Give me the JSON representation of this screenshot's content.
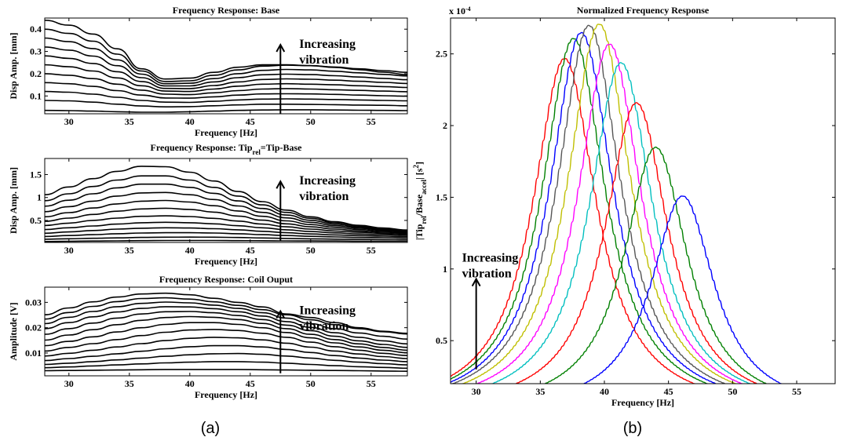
{
  "captions": {
    "a": "(a)",
    "b": "(b)"
  },
  "chart_data": [
    {
      "type": "line",
      "title": "Frequency Response: Base",
      "xlabel": "Frequency [Hz]",
      "ylabel": "Disp Amp. [mm]",
      "xlim": [
        28,
        58
      ],
      "ylim": [
        0.02,
        0.45
      ],
      "xticks": [
        30,
        35,
        40,
        45,
        50,
        55
      ],
      "yticks": [
        0.1,
        0.2,
        0.3,
        0.4
      ],
      "xticklabels": [
        "30",
        "35",
        "40",
        "45",
        "50",
        "55"
      ],
      "yticklabels": [
        "0.1",
        "0.2",
        "0.3",
        "0.4"
      ],
      "annotation": {
        "line1": "Increasing",
        "line2": "vibration",
        "x": 47.5,
        "y_from": 0.02,
        "y_to": 0.33
      },
      "x": [
        28,
        30,
        32,
        34,
        36,
        38,
        40,
        42,
        44,
        46,
        48,
        50,
        52,
        54,
        56,
        58
      ],
      "series": [
        {
          "color": "#000000",
          "values": [
            0.035,
            0.034,
            0.032,
            0.029,
            0.027,
            0.027,
            0.029,
            0.032,
            0.035,
            0.037,
            0.038,
            0.038,
            0.037,
            0.036,
            0.035,
            0.034
          ]
        },
        {
          "color": "#000000",
          "values": [
            0.08,
            0.078,
            0.072,
            0.063,
            0.055,
            0.051,
            0.052,
            0.056,
            0.06,
            0.063,
            0.063,
            0.062,
            0.061,
            0.059,
            0.058,
            0.056
          ]
        },
        {
          "color": "#000000",
          "values": [
            0.12,
            0.117,
            0.108,
            0.094,
            0.08,
            0.072,
            0.071,
            0.076,
            0.082,
            0.086,
            0.087,
            0.086,
            0.084,
            0.082,
            0.08,
            0.078
          ]
        },
        {
          "color": "#000000",
          "values": [
            0.16,
            0.155,
            0.143,
            0.124,
            0.104,
            0.091,
            0.09,
            0.096,
            0.104,
            0.109,
            0.11,
            0.109,
            0.107,
            0.104,
            0.101,
            0.099
          ]
        },
        {
          "color": "#000000",
          "values": [
            0.2,
            0.193,
            0.178,
            0.153,
            0.126,
            0.108,
            0.106,
            0.114,
            0.124,
            0.131,
            0.133,
            0.131,
            0.128,
            0.125,
            0.122,
            0.119
          ]
        },
        {
          "color": "#000000",
          "values": [
            0.24,
            0.231,
            0.212,
            0.181,
            0.146,
            0.122,
            0.12,
            0.131,
            0.144,
            0.153,
            0.155,
            0.153,
            0.15,
            0.146,
            0.142,
            0.138
          ]
        },
        {
          "color": "#000000",
          "values": [
            0.28,
            0.269,
            0.246,
            0.209,
            0.165,
            0.134,
            0.133,
            0.147,
            0.163,
            0.174,
            0.177,
            0.175,
            0.171,
            0.166,
            0.161,
            0.156
          ]
        },
        {
          "color": "#000000",
          "values": [
            0.32,
            0.306,
            0.279,
            0.236,
            0.182,
            0.145,
            0.145,
            0.163,
            0.182,
            0.195,
            0.198,
            0.196,
            0.191,
            0.185,
            0.179,
            0.173
          ]
        },
        {
          "color": "#000000",
          "values": [
            0.36,
            0.344,
            0.313,
            0.262,
            0.198,
            0.155,
            0.157,
            0.178,
            0.2,
            0.215,
            0.219,
            0.217,
            0.211,
            0.204,
            0.197,
            0.19
          ]
        },
        {
          "color": "#000000",
          "values": [
            0.4,
            0.381,
            0.346,
            0.288,
            0.212,
            0.165,
            0.168,
            0.193,
            0.217,
            0.234,
            0.238,
            0.236,
            0.23,
            0.222,
            0.214,
            0.206
          ]
        },
        {
          "color": "#000000",
          "values": [
            0.44,
            0.418,
            0.378,
            0.312,
            0.222,
            0.176,
            0.18,
            0.206,
            0.229,
            0.24,
            0.24,
            0.236,
            0.228,
            0.218,
            0.207,
            0.196
          ]
        }
      ]
    },
    {
      "type": "line",
      "title_main": "Frequency Response: Tip",
      "title_sub": "rel",
      "title_end": "=Tip-Base",
      "xlabel": "Frequency [Hz]",
      "ylabel": "Disp Amp. [mm]",
      "xlim": [
        28,
        58
      ],
      "ylim": [
        0.02,
        1.85
      ],
      "xticks": [
        30,
        35,
        40,
        45,
        50,
        55
      ],
      "yticks": [
        0.5,
        1,
        1.5
      ],
      "xticklabels": [
        "30",
        "35",
        "40",
        "45",
        "50",
        "55"
      ],
      "yticklabels": [
        "0.5",
        "1",
        "1.5"
      ],
      "annotation": {
        "line1": "Increasing",
        "line2": "vibration",
        "x": 47.5,
        "y_from": 0.05,
        "y_to": 1.35
      },
      "x": [
        28,
        30,
        32,
        34,
        36,
        38,
        40,
        42,
        44,
        46,
        48,
        50,
        52,
        54,
        56,
        58
      ],
      "series": [
        {
          "color": "#000000",
          "values": [
            0.04,
            0.045,
            0.05,
            0.055,
            0.06,
            0.062,
            0.063,
            0.062,
            0.06,
            0.058,
            0.055,
            0.052,
            0.05,
            0.048,
            0.046,
            0.045
          ]
        },
        {
          "color": "#000000",
          "values": [
            0.09,
            0.1,
            0.11,
            0.12,
            0.13,
            0.135,
            0.137,
            0.135,
            0.128,
            0.118,
            0.107,
            0.098,
            0.091,
            0.086,
            0.082,
            0.079
          ]
        },
        {
          "color": "#000000",
          "values": [
            0.15,
            0.17,
            0.19,
            0.21,
            0.225,
            0.232,
            0.232,
            0.225,
            0.21,
            0.19,
            0.17,
            0.153,
            0.14,
            0.13,
            0.122,
            0.116
          ]
        },
        {
          "color": "#000000",
          "values": [
            0.22,
            0.25,
            0.28,
            0.31,
            0.33,
            0.34,
            0.335,
            0.32,
            0.295,
            0.263,
            0.232,
            0.205,
            0.184,
            0.168,
            0.156,
            0.147
          ]
        },
        {
          "color": "#000000",
          "values": [
            0.3,
            0.34,
            0.38,
            0.42,
            0.45,
            0.46,
            0.45,
            0.425,
            0.385,
            0.34,
            0.295,
            0.258,
            0.228,
            0.205,
            0.189,
            0.176
          ]
        },
        {
          "color": "#000000",
          "values": [
            0.39,
            0.44,
            0.5,
            0.55,
            0.59,
            0.6,
            0.585,
            0.545,
            0.485,
            0.42,
            0.36,
            0.31,
            0.27,
            0.24,
            0.218,
            0.201
          ]
        },
        {
          "color": "#000000",
          "values": [
            0.48,
            0.55,
            0.63,
            0.7,
            0.75,
            0.765,
            0.74,
            0.68,
            0.595,
            0.505,
            0.425,
            0.36,
            0.31,
            0.272,
            0.243,
            0.221
          ]
        },
        {
          "color": "#000000",
          "values": [
            0.58,
            0.67,
            0.77,
            0.86,
            0.92,
            0.935,
            0.9,
            0.82,
            0.705,
            0.59,
            0.49,
            0.41,
            0.35,
            0.303,
            0.267,
            0.24
          ]
        },
        {
          "color": "#000000",
          "values": [
            0.69,
            0.8,
            0.92,
            1.03,
            1.1,
            1.11,
            1.06,
            0.955,
            0.815,
            0.675,
            0.555,
            0.458,
            0.386,
            0.33,
            0.288,
            0.256
          ]
        },
        {
          "color": "#000000",
          "values": [
            0.81,
            0.94,
            1.08,
            1.21,
            1.29,
            1.29,
            1.22,
            1.09,
            0.925,
            0.76,
            0.617,
            0.503,
            0.418,
            0.354,
            0.306,
            0.27
          ]
        },
        {
          "color": "#000000",
          "values": [
            0.93,
            1.08,
            1.24,
            1.38,
            1.47,
            1.47,
            1.38,
            1.22,
            1.03,
            0.84,
            0.675,
            0.545,
            0.448,
            0.376,
            0.322,
            0.282
          ]
        },
        {
          "color": "#000000",
          "values": [
            1.06,
            1.23,
            1.41,
            1.57,
            1.68,
            1.67,
            1.55,
            1.36,
            1.13,
            0.91,
            0.725,
            0.58,
            0.472,
            0.392,
            0.334,
            0.29
          ]
        }
      ]
    },
    {
      "type": "line",
      "title": "Frequency Response: Coil Ouput",
      "xlabel": "Frequency [Hz]",
      "ylabel": "Amplitude [V]",
      "xlim": [
        28,
        58
      ],
      "ylim": [
        0.001,
        0.036
      ],
      "xticks": [
        30,
        35,
        40,
        45,
        50,
        55
      ],
      "yticks": [
        0.01,
        0.02,
        0.03
      ],
      "xticklabels": [
        "30",
        "35",
        "40",
        "45",
        "50",
        "55"
      ],
      "yticklabels": [
        "0.01",
        "0.02",
        "0.03"
      ],
      "annotation": {
        "line1": "Increasing",
        "line2": "vibration",
        "x": 47.5,
        "y_from": 0.002,
        "y_to": 0.0265
      },
      "x": [
        28,
        30,
        32,
        34,
        36,
        38,
        40,
        42,
        44,
        46,
        48,
        50,
        52,
        54,
        56,
        58
      ],
      "series": [
        {
          "color": "#000000",
          "values": [
            0.003,
            0.0031,
            0.0032,
            0.0033,
            0.0034,
            0.0035,
            0.0035,
            0.0035,
            0.0035,
            0.0034,
            0.0033,
            0.0032,
            0.0031,
            0.003,
            0.0029,
            0.0028
          ]
        },
        {
          "color": "#000000",
          "values": [
            0.0042,
            0.0045,
            0.0049,
            0.0053,
            0.0057,
            0.0061,
            0.0064,
            0.0066,
            0.0066,
            0.0064,
            0.006,
            0.0055,
            0.005,
            0.0046,
            0.0043,
            0.004
          ]
        },
        {
          "color": "#000000",
          "values": [
            0.0055,
            0.006,
            0.0066,
            0.0073,
            0.008,
            0.0087,
            0.0093,
            0.0097,
            0.0098,
            0.0095,
            0.0088,
            0.008,
            0.0071,
            0.0064,
            0.0058,
            0.0053
          ]
        },
        {
          "color": "#000000",
          "values": [
            0.007,
            0.0078,
            0.0087,
            0.0097,
            0.0107,
            0.0117,
            0.0125,
            0.0129,
            0.0129,
            0.0124,
            0.0114,
            0.0102,
            0.009,
            0.008,
            0.0072,
            0.0066
          ]
        },
        {
          "color": "#000000",
          "values": [
            0.0088,
            0.0099,
            0.0111,
            0.0124,
            0.0137,
            0.0149,
            0.0158,
            0.0162,
            0.016,
            0.0152,
            0.0139,
            0.0123,
            0.0108,
            0.0096,
            0.0086,
            0.0078
          ]
        },
        {
          "color": "#000000",
          "values": [
            0.0108,
            0.0122,
            0.0137,
            0.0153,
            0.0169,
            0.0182,
            0.0191,
            0.0193,
            0.0189,
            0.0178,
            0.0162,
            0.0143,
            0.0125,
            0.0111,
            0.0099,
            0.009
          ]
        },
        {
          "color": "#000000",
          "values": [
            0.0129,
            0.0146,
            0.0164,
            0.0183,
            0.02,
            0.0213,
            0.022,
            0.022,
            0.0213,
            0.02,
            0.0181,
            0.016,
            0.014,
            0.0124,
            0.0111,
            0.0101
          ]
        },
        {
          "color": "#000000",
          "values": [
            0.0151,
            0.0171,
            0.0192,
            0.0212,
            0.0229,
            0.024,
            0.0244,
            0.0241,
            0.0232,
            0.0217,
            0.0196,
            0.0174,
            0.0153,
            0.0136,
            0.0122,
            0.0111
          ]
        },
        {
          "color": "#000000",
          "values": [
            0.0174,
            0.0196,
            0.0218,
            0.0238,
            0.0254,
            0.0263,
            0.0264,
            0.0259,
            0.0248,
            0.0232,
            0.021,
            0.0188,
            0.0166,
            0.0148,
            0.0134,
            0.0122
          ]
        },
        {
          "color": "#000000",
          "values": [
            0.0196,
            0.022,
            0.0243,
            0.0262,
            0.0276,
            0.0283,
            0.0282,
            0.0275,
            0.0263,
            0.0246,
            0.0224,
            0.0201,
            0.018,
            0.0162,
            0.0148,
            0.0136
          ]
        },
        {
          "color": "#000000",
          "values": [
            0.0216,
            0.0241,
            0.0264,
            0.0283,
            0.0296,
            0.0301,
            0.0298,
            0.0289,
            0.0276,
            0.0259,
            0.0238,
            0.0216,
            0.0196,
            0.0179,
            0.0166,
            0.0155
          ]
        },
        {
          "color": "#000000",
          "values": [
            0.0234,
            0.026,
            0.0284,
            0.0303,
            0.0315,
            0.0318,
            0.0313,
            0.0302,
            0.0288,
            0.0271,
            0.0251,
            0.0231,
            0.0212,
            0.0196,
            0.0184,
            0.0175
          ]
        },
        {
          "color": "#000000",
          "values": [
            0.0251,
            0.0278,
            0.0302,
            0.0321,
            0.0333,
            0.0336,
            0.033,
            0.0316,
            0.03,
            0.0282,
            0.0254,
            0.024,
            0.022,
            0.02,
            0.0186,
            0.0178
          ]
        }
      ]
    },
    {
      "type": "line",
      "title": "Normalized Frequency Response",
      "xlabel": "Frequency [Hz]",
      "ylabel_parts": [
        "|Tip",
        "rel",
        "/Base",
        "accel",
        "| [s",
        "2",
        "]"
      ],
      "exponent_label": "x 10",
      "exponent_power": "-4",
      "xlim": [
        28,
        58
      ],
      "ylim": [
        0.2,
        2.75
      ],
      "xticks": [
        30,
        35,
        40,
        45,
        50,
        55
      ],
      "yticks": [
        0.5,
        1,
        1.5,
        2,
        2.5
      ],
      "xticklabels": [
        "30",
        "35",
        "40",
        "45",
        "50",
        "55"
      ],
      "yticklabels": [
        "0.5",
        "1",
        "1.5",
        "2",
        "2.5"
      ],
      "annotation": {
        "line1": "Increasing",
        "line2": "vibration",
        "x": 30,
        "y_from": 0.3,
        "y_to": 0.93
      },
      "peak_width": 3.0,
      "series": [
        {
          "color": "#ff0000",
          "peak_x": 36.9,
          "peak_y": 2.47
        },
        {
          "color": "#008000",
          "peak_x": 37.6,
          "peak_y": 2.61
        },
        {
          "color": "#0000ff",
          "peak_x": 38.2,
          "peak_y": 2.65
        },
        {
          "color": "#555555",
          "peak_x": 38.8,
          "peak_y": 2.7
        },
        {
          "color": "#bfbf00",
          "peak_x": 39.6,
          "peak_y": 2.71
        },
        {
          "color": "#ff00ff",
          "peak_x": 40.4,
          "peak_y": 2.57
        },
        {
          "color": "#00bfbf",
          "peak_x": 41.3,
          "peak_y": 2.44
        },
        {
          "color": "#ff0000",
          "peak_x": 42.5,
          "peak_y": 2.16
        },
        {
          "color": "#008000",
          "peak_x": 44.0,
          "peak_y": 1.85
        },
        {
          "color": "#0000ff",
          "peak_x": 46.1,
          "peak_y": 1.51
        }
      ]
    }
  ]
}
